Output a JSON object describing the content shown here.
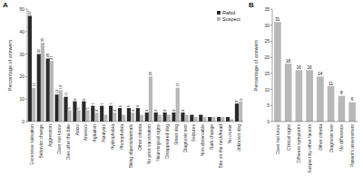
{
  "chart_data": [
    {
      "type": "bar",
      "title": "A",
      "categories": [
        "Excessive salivation",
        "Behavior change",
        "Aggression",
        "Does not know",
        "Dies after the bite",
        "Ataxv",
        "Anorexv",
        "Agitation",
        "Paralysis",
        "Hydrophobia",
        "Photophobia",
        "Biting objects/animals",
        "Other criteria",
        "No prior vaccination",
        "Neurological signs",
        "Disappeared dog",
        "Street dog",
        "Diagnosis test",
        "Seizures",
        "Non-observable",
        "Bark change",
        "Bite on the neck/head",
        "No owner",
        "Unknown dog"
      ],
      "series": [
        {
          "name": "Rabid",
          "color": "#2a2a2a",
          "values": [
            47,
            30,
            28,
            12,
            11,
            9,
            9,
            7,
            7,
            7,
            6,
            6,
            6,
            4,
            4,
            4,
            4,
            4,
            3,
            3,
            2,
            2,
            2,
            8
          ],
          "value_labels": [
            "47",
            "30",
            "28",
            "12",
            "11",
            "9",
            "9",
            "7",
            "7",
            "7",
            "6",
            "6",
            "6",
            "4",
            "4",
            "4",
            "4",
            "4",
            null,
            null,
            null,
            null,
            null,
            "8"
          ]
        },
        {
          "name": "Suspect",
          "color": "#b8b8b8",
          "values": [
            15,
            35,
            27,
            14,
            5,
            5,
            5,
            4,
            3,
            4,
            3,
            4,
            3,
            20,
            3,
            3,
            15,
            3,
            2,
            2,
            2,
            2,
            1,
            9
          ],
          "value_labels": [
            "15",
            "35",
            "27",
            "14",
            "5",
            "5",
            "5",
            "4",
            null,
            "4",
            null,
            "4",
            null,
            "20",
            null,
            null,
            "15",
            null,
            null,
            null,
            null,
            null,
            null,
            "9"
          ]
        }
      ],
      "ylabel": "Percentage of answers",
      "ylim": [
        0,
        50
      ],
      "yticks": [
        0,
        10,
        20,
        30,
        40,
        50
      ],
      "legend": "upper right",
      "data_labels": true
    },
    {
      "type": "bar",
      "title": "B",
      "categories": [
        "Does not know",
        "Clinical signs",
        "Different symptoms",
        "Suspect by other factors",
        "Other criteria",
        "Diagnosis test",
        "No difference",
        "Patient's assessment"
      ],
      "values": [
        31,
        18,
        16,
        16,
        14,
        11,
        8,
        6
      ],
      "color": "#b8b8b8",
      "ylabel": "Percentage of answers",
      "ylim": [
        0,
        35
      ],
      "yticks": [
        0,
        5,
        10,
        15,
        20,
        25,
        30,
        35
      ],
      "data_labels": true
    }
  ]
}
